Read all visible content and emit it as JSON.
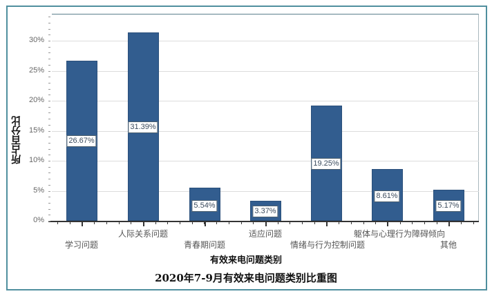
{
  "chart_data": {
    "type": "bar",
    "title": "2020年7-9月有效来电问题类别比重图",
    "xlabel": "有效来电问题类别",
    "ylabel": "所占百分比",
    "categories": [
      "学习问题",
      "人际关系问题",
      "青春期问题",
      "适应问题",
      "情绪与行为控制问题",
      "躯体与心理行为障碍倾向",
      "其他"
    ],
    "values": [
      26.67,
      31.39,
      5.54,
      3.37,
      19.25,
      8.61,
      5.17
    ],
    "value_labels": [
      "26.67%",
      "31.39%",
      "5.54%",
      "3.37%",
      "19.25%",
      "8.61%",
      "5.17%"
    ],
    "yticks": [
      "0%",
      "5%",
      "10%",
      "15%",
      "20%",
      "25%",
      "30%"
    ],
    "ylim": [
      0,
      34.5
    ],
    "grid": true,
    "legend": "none",
    "colors": {
      "bar": "#325d8f",
      "frame": "#4f8f9e"
    }
  }
}
